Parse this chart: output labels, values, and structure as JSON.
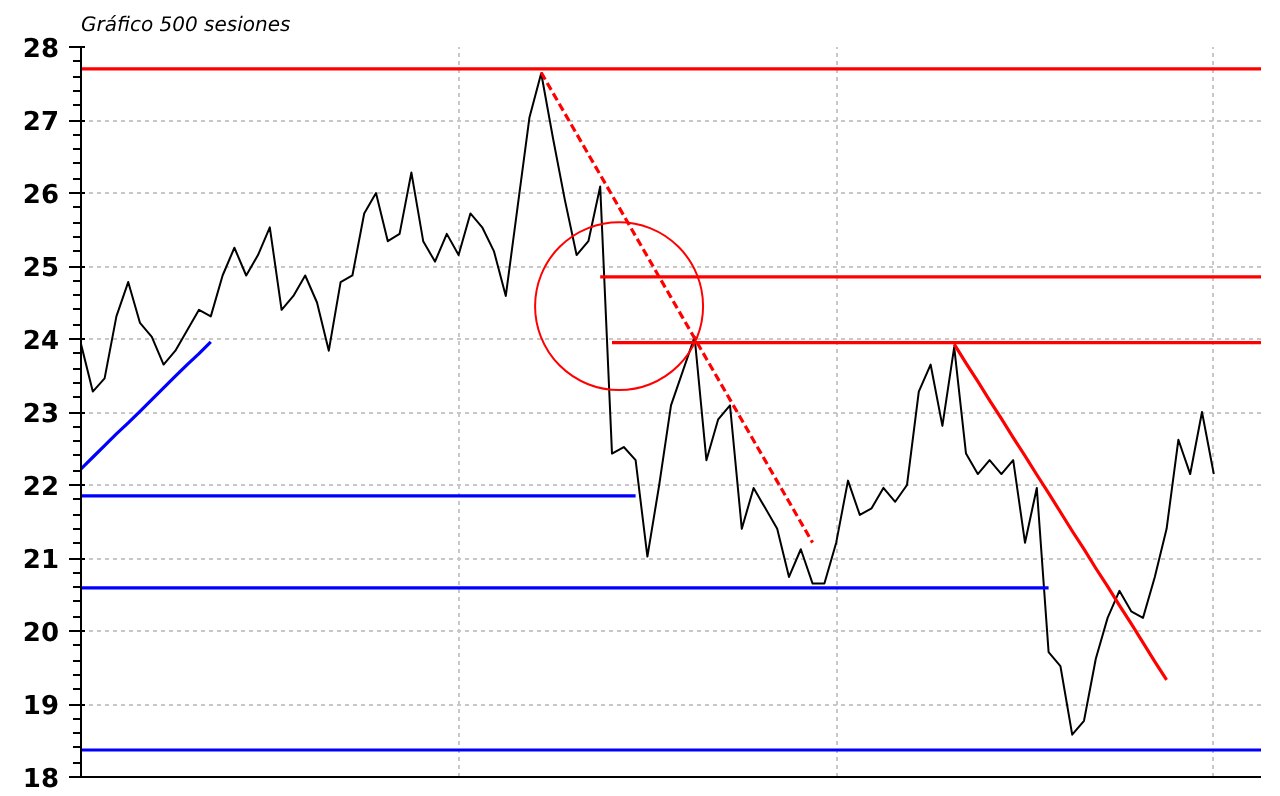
{
  "chart_data": {
    "type": "line",
    "title": "Gráfico 500 sesiones",
    "categories": [
      null,
      null,
      null,
      null,
      null,
      null,
      null,
      null,
      null,
      null,
      null,
      null,
      null,
      null,
      null,
      null,
      null,
      null,
      null,
      null,
      null,
      null,
      null,
      null,
      null,
      null,
      null,
      null,
      null,
      null,
      null,
      null,
      null,
      null,
      null,
      null,
      null,
      null,
      null,
      null,
      null,
      null,
      null,
      null,
      null,
      null,
      null,
      null,
      null,
      null,
      null,
      null,
      null,
      null,
      null,
      null,
      null,
      null,
      null,
      null,
      null,
      null,
      null,
      null,
      null,
      null,
      null,
      null,
      null,
      null,
      null,
      null,
      null,
      null,
      null,
      null,
      null,
      null,
      null,
      null,
      null,
      null,
      null,
      null,
      null,
      null,
      null,
      null,
      null,
      null,
      null,
      null,
      null,
      null,
      null,
      null,
      null,
      null,
      null,
      null,
      null
    ],
    "ylim": [
      18,
      28
    ],
    "yticks": [
      18,
      19,
      20,
      21,
      22,
      23,
      24,
      25,
      26,
      27,
      28
    ],
    "grid": true,
    "series": [
      {
        "color": "#000000",
        "values": [
          23.93,
          23.28,
          23.46,
          24.31,
          24.78,
          24.22,
          24.03,
          23.65,
          23.84,
          24.12,
          24.4,
          24.31,
          24.87,
          25.25,
          24.87,
          25.15,
          25.53,
          24.4,
          24.59,
          24.87,
          24.5,
          23.84,
          24.78,
          24.87,
          25.72,
          26.0,
          25.34,
          25.44,
          26.28,
          25.34,
          25.06,
          25.44,
          25.15,
          25.72,
          25.53,
          25.2,
          24.59,
          25.81,
          27.03,
          27.64,
          26.75,
          25.91,
          25.15,
          25.34,
          26.09,
          22.43,
          22.52,
          22.34,
          21.02,
          22.0,
          23.09,
          23.56,
          24.03,
          22.34,
          22.9,
          23.09,
          21.4,
          21.96,
          21.68,
          21.4,
          20.74,
          21.12,
          20.65,
          20.65,
          21.21,
          22.06,
          21.59,
          21.68,
          21.96,
          21.77,
          22.0,
          23.28,
          23.65,
          22.81,
          23.89,
          22.43,
          22.15,
          22.34,
          22.15,
          22.34,
          21.21,
          21.96,
          19.71,
          19.52,
          18.58,
          18.77,
          19.62,
          20.18,
          20.55,
          20.27,
          20.18,
          20.74,
          21.4,
          22.62,
          22.15,
          23.0,
          22.15,
          null,
          null,
          null,
          null
        ]
      },
      {
        "color": "#ff0000",
        "values": [
          27.7,
          27.7,
          27.7,
          27.7,
          27.7,
          27.7,
          27.7,
          27.7,
          27.7,
          27.7,
          27.7,
          27.7,
          27.7,
          27.7,
          27.7,
          27.7,
          27.7,
          27.7,
          27.7,
          27.7,
          27.7,
          27.7,
          27.7,
          27.7,
          27.7,
          27.7,
          27.7,
          27.7,
          27.7,
          27.7,
          27.7,
          27.7,
          27.7,
          27.7,
          27.7,
          27.7,
          27.7,
          27.7,
          27.7,
          27.7,
          27.7,
          27.7,
          27.7,
          27.7,
          27.7,
          27.7,
          27.7,
          27.7,
          27.7,
          27.7,
          27.7,
          27.7,
          27.7,
          27.7,
          27.7,
          27.7,
          27.7,
          27.7,
          27.7,
          27.7,
          27.7,
          27.7,
          27.7,
          27.7,
          27.7,
          27.7,
          27.7,
          27.7,
          27.7,
          27.7,
          27.7,
          27.7,
          27.7,
          27.7,
          27.7,
          27.7,
          27.7,
          27.7,
          27.7,
          27.7,
          27.7,
          27.7,
          27.7,
          27.7,
          27.7,
          27.7,
          27.7,
          27.7,
          27.7,
          27.7,
          27.7,
          27.7,
          27.7,
          27.7,
          27.7,
          27.7,
          27.7,
          27.7,
          27.7,
          27.7,
          27.7
        ]
      },
      {
        "color": "#ff0000",
        "values": [
          null,
          null,
          null,
          null,
          null,
          null,
          null,
          null,
          null,
          null,
          null,
          null,
          null,
          null,
          null,
          null,
          null,
          null,
          null,
          null,
          null,
          null,
          null,
          null,
          null,
          null,
          null,
          null,
          null,
          null,
          null,
          null,
          null,
          null,
          null,
          null,
          null,
          null,
          null,
          null,
          null,
          null,
          null,
          null,
          24.85,
          24.85,
          24.85,
          24.85,
          24.85,
          24.85,
          24.85,
          24.85,
          24.85,
          24.85,
          24.85,
          24.85,
          24.85,
          24.85,
          24.85,
          24.85,
          24.85,
          24.85,
          24.85,
          24.85,
          24.85,
          24.85,
          24.85,
          24.85,
          24.85,
          24.85,
          24.85,
          24.85,
          24.85,
          24.85,
          24.85,
          24.85,
          24.85,
          24.85,
          24.85,
          24.85,
          24.85,
          24.85,
          24.85,
          24.85,
          24.85,
          24.85,
          24.85,
          24.85,
          24.85,
          24.85,
          24.85,
          24.85,
          24.85,
          24.85,
          24.85,
          24.85,
          24.85,
          24.85,
          24.85,
          24.85,
          24.85
        ]
      },
      {
        "color": "#ff0000",
        "values": [
          null,
          null,
          null,
          null,
          null,
          null,
          null,
          null,
          null,
          null,
          null,
          null,
          null,
          null,
          null,
          null,
          null,
          null,
          null,
          null,
          null,
          null,
          null,
          null,
          null,
          null,
          null,
          null,
          null,
          null,
          null,
          null,
          null,
          null,
          null,
          null,
          null,
          null,
          null,
          null,
          null,
          null,
          null,
          null,
          null,
          23.95,
          23.95,
          23.95,
          23.95,
          23.95,
          23.95,
          23.95,
          23.95,
          23.95,
          23.95,
          23.95,
          23.95,
          23.95,
          23.95,
          23.95,
          23.95,
          23.95,
          23.95,
          23.95,
          23.95,
          23.95,
          23.95,
          23.95,
          23.95,
          23.95,
          23.95,
          23.95,
          23.95,
          23.95,
          23.95,
          23.95,
          23.95,
          23.95,
          23.95,
          23.95,
          23.95,
          23.95,
          23.95,
          23.95,
          23.95,
          23.95,
          23.95,
          23.95,
          23.95,
          23.95,
          23.95,
          23.95,
          23.95,
          23.95,
          23.95,
          23.95,
          23.95,
          23.95,
          23.95,
          23.95,
          23.95
        ]
      },
      {
        "color": "#0000ff",
        "values": [
          21.85,
          21.85,
          21.85,
          21.85,
          21.85,
          21.85,
          21.85,
          21.85,
          21.85,
          21.85,
          21.85,
          21.85,
          21.85,
          21.85,
          21.85,
          21.85,
          21.85,
          21.85,
          21.85,
          21.85,
          21.85,
          21.85,
          21.85,
          21.85,
          21.85,
          21.85,
          21.85,
          21.85,
          21.85,
          21.85,
          21.85,
          21.85,
          21.85,
          21.85,
          21.85,
          21.85,
          21.85,
          21.85,
          21.85,
          21.85,
          21.85,
          21.85,
          21.85,
          21.85,
          21.85,
          21.85,
          21.85,
          21.85,
          null,
          null,
          null,
          null,
          null,
          null,
          null,
          null,
          null,
          null,
          null,
          null,
          null,
          null,
          null,
          null,
          null,
          null,
          null,
          null,
          null,
          null,
          null,
          null,
          null,
          null,
          null,
          null,
          null,
          null,
          null,
          null,
          null,
          null,
          null,
          null,
          null,
          null,
          null,
          null,
          null,
          null,
          null,
          null,
          null,
          null,
          null,
          null,
          null,
          null,
          null,
          null,
          null
        ]
      },
      {
        "color": "#0000ff",
        "values": [
          20.59,
          20.59,
          20.59,
          20.59,
          20.59,
          20.59,
          20.59,
          20.59,
          20.59,
          20.59,
          20.59,
          20.59,
          20.59,
          20.59,
          20.59,
          20.59,
          20.59,
          20.59,
          20.59,
          20.59,
          20.59,
          20.59,
          20.59,
          20.59,
          20.59,
          20.59,
          20.59,
          20.59,
          20.59,
          20.59,
          20.59,
          20.59,
          20.59,
          20.59,
          20.59,
          20.59,
          20.59,
          20.59,
          20.59,
          20.59,
          20.59,
          20.59,
          20.59,
          20.59,
          20.59,
          20.59,
          20.59,
          20.59,
          20.59,
          20.59,
          20.59,
          20.59,
          20.59,
          20.59,
          20.59,
          20.59,
          20.59,
          20.59,
          20.59,
          20.59,
          20.59,
          20.59,
          20.59,
          20.59,
          20.59,
          20.59,
          20.59,
          20.59,
          20.59,
          20.59,
          20.59,
          20.59,
          20.59,
          20.59,
          20.59,
          20.59,
          20.59,
          20.59,
          20.59,
          20.59,
          20.59,
          20.59,
          20.59,
          null,
          null,
          null,
          null,
          null,
          null,
          null,
          null,
          null,
          null,
          null,
          null,
          null,
          null,
          null,
          null,
          null,
          null
        ]
      },
      {
        "color": "#0000ff",
        "values": [
          18.37,
          18.37,
          18.37,
          18.37,
          18.37,
          18.37,
          18.37,
          18.37,
          18.37,
          18.37,
          18.37,
          18.37,
          18.37,
          18.37,
          18.37,
          18.37,
          18.37,
          18.37,
          18.37,
          18.37,
          18.37,
          18.37,
          18.37,
          18.37,
          18.37,
          18.37,
          18.37,
          18.37,
          18.37,
          18.37,
          18.37,
          18.37,
          18.37,
          18.37,
          18.37,
          18.37,
          18.37,
          18.37,
          18.37,
          18.37,
          18.37,
          18.37,
          18.37,
          18.37,
          18.37,
          18.37,
          18.37,
          18.37,
          18.37,
          18.37,
          18.37,
          18.37,
          18.37,
          18.37,
          18.37,
          18.37,
          18.37,
          18.37,
          18.37,
          18.37,
          18.37,
          18.37,
          18.37,
          18.37,
          18.37,
          18.37,
          18.37,
          18.37,
          18.37,
          18.37,
          18.37,
          18.37,
          18.37,
          18.37,
          18.37,
          18.37,
          18.37,
          18.37,
          18.37,
          18.37,
          18.37,
          18.37,
          18.37,
          18.37,
          18.37,
          18.37,
          18.37,
          18.37,
          18.37,
          18.37,
          18.37,
          18.37,
          18.37,
          18.37,
          18.37,
          18.37,
          18.37,
          18.37,
          18.37,
          18.37,
          18.37
        ]
      },
      {
        "color": "#0000ff",
        "values": [
          22.22,
          22.38,
          22.54,
          22.7,
          22.85,
          23.01,
          23.17,
          23.33,
          23.49,
          23.65,
          23.8,
          23.96,
          null,
          null,
          null,
          null,
          null,
          null,
          null,
          null,
          null,
          null,
          null,
          null,
          null,
          null,
          null,
          null,
          null,
          null,
          null,
          null,
          null,
          null,
          null,
          null,
          null,
          null,
          null,
          null,
          null,
          null,
          null,
          null,
          null,
          null,
          null,
          null,
          null,
          null,
          null,
          null,
          null,
          null,
          null,
          null,
          null,
          null,
          null,
          null,
          null,
          null,
          null,
          null,
          null,
          null,
          null,
          null,
          null,
          null,
          null,
          null,
          null,
          null,
          null,
          null,
          null,
          null,
          null,
          null,
          null,
          null,
          null,
          null,
          null,
          null,
          null,
          null,
          null,
          null,
          null,
          null,
          null,
          null,
          null,
          null,
          null,
          null,
          null,
          null,
          null
        ]
      },
      {
        "color": "#ff0000",
        "line_style": "dashed",
        "values": [
          null,
          null,
          null,
          null,
          null,
          null,
          null,
          null,
          null,
          null,
          null,
          null,
          null,
          null,
          null,
          null,
          null,
          null,
          null,
          null,
          null,
          null,
          null,
          null,
          null,
          null,
          null,
          null,
          null,
          null,
          null,
          null,
          null,
          null,
          null,
          null,
          null,
          null,
          null,
          27.65,
          27.37,
          27.09,
          26.81,
          26.53,
          26.25,
          25.97,
          25.69,
          25.41,
          25.13,
          24.85,
          24.57,
          24.29,
          24.01,
          23.73,
          23.45,
          23.17,
          22.89,
          22.61,
          22.33,
          22.05,
          21.77,
          21.49,
          21.21,
          null,
          null,
          null,
          null,
          null,
          null,
          null,
          null,
          null,
          null,
          null,
          null,
          null,
          null,
          null,
          null,
          null,
          null,
          null,
          null,
          null,
          null,
          null,
          null,
          null,
          null,
          null,
          null,
          null,
          null,
          null,
          null,
          null,
          null,
          null,
          null,
          null,
          null
        ]
      },
      {
        "color": "#ff0000",
        "values": [
          null,
          null,
          null,
          null,
          null,
          null,
          null,
          null,
          null,
          null,
          null,
          null,
          null,
          null,
          null,
          null,
          null,
          null,
          null,
          null,
          null,
          null,
          null,
          null,
          null,
          null,
          null,
          null,
          null,
          null,
          null,
          null,
          null,
          null,
          null,
          null,
          null,
          null,
          null,
          null,
          null,
          null,
          null,
          null,
          null,
          null,
          null,
          null,
          null,
          null,
          null,
          null,
          null,
          null,
          null,
          null,
          null,
          null,
          null,
          null,
          null,
          null,
          null,
          null,
          null,
          null,
          null,
          null,
          null,
          null,
          null,
          null,
          null,
          null,
          23.93,
          23.67,
          23.42,
          23.16,
          22.91,
          22.65,
          22.4,
          22.14,
          21.89,
          21.63,
          21.37,
          21.12,
          20.86,
          20.61,
          20.35,
          20.1,
          19.84,
          19.58,
          19.33,
          null,
          null,
          null,
          null,
          null,
          null,
          null,
          null
        ]
      }
    ]
  }
}
